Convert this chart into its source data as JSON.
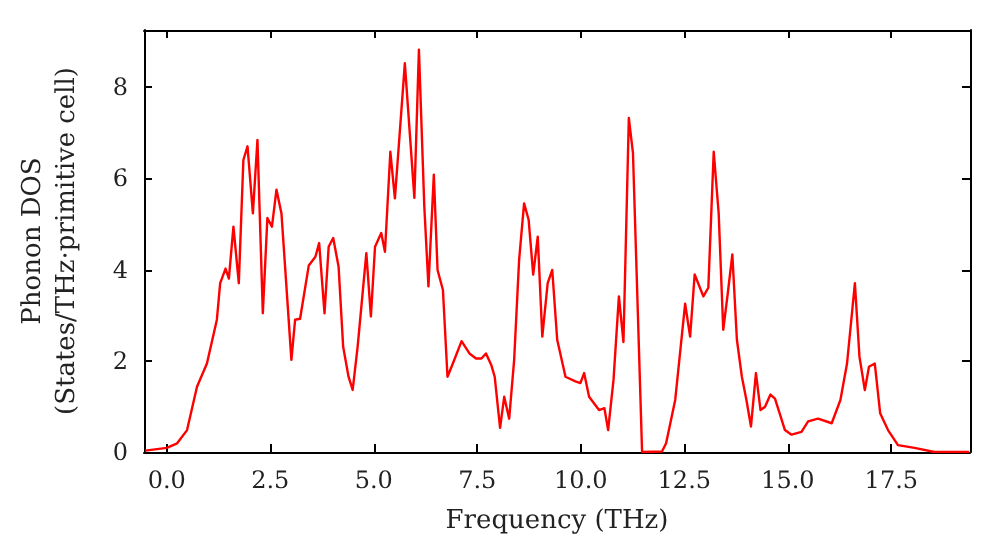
{
  "chart_data": {
    "type": "line",
    "xlabel": "Frequency (THz)",
    "ylabel": "Phonon DOS\n(States/THz·primitive cell)",
    "x": [
      -0.52,
      0,
      0.25,
      0.49,
      0.73,
      0.97,
      1.21,
      1.29,
      1.42,
      1.5,
      1.61,
      1.74,
      1.85,
      1.95,
      2.08,
      2.19,
      2.32,
      2.43,
      2.54,
      2.65,
      2.77,
      3.01,
      3.1,
      3.22,
      3.43,
      3.59,
      3.68,
      3.81,
      3.91,
      4.02,
      4.15,
      4.26,
      4.39,
      4.49,
      4.61,
      4.82,
      4.93,
      5.03,
      5.18,
      5.27,
      5.4,
      5.51,
      5.75,
      5.98,
      6.09,
      6.22,
      6.32,
      6.45,
      6.54,
      6.67,
      6.78,
      6.91,
      7.12,
      7.31,
      7.47,
      7.6,
      7.71,
      7.84,
      7.92,
      8.05,
      8.15,
      8.27,
      8.39,
      8.51,
      8.63,
      8.74,
      8.85,
      8.96,
      9.07,
      9.2,
      9.31,
      9.43,
      9.63,
      9.87,
      9.99,
      10.08,
      10.2,
      10.44,
      10.57,
      10.66,
      10.79,
      10.92,
      11.03,
      11.16,
      11.26,
      11.48,
      11.96,
      12.06,
      12.28,
      12.52,
      12.64,
      12.75,
      12.96,
      13.08,
      13.21,
      13.33,
      13.44,
      13.55,
      13.66,
      13.77,
      13.89,
      14.0,
      14.11,
      14.23,
      14.34,
      14.45,
      14.58,
      14.69,
      14.93,
      15.09,
      15.33,
      15.49,
      15.73,
      16.06,
      16.27,
      16.43,
      16.62,
      16.73,
      16.86,
      16.96,
      17.1,
      17.23,
      17.42,
      17.66,
      18.06,
      18.54,
      19.38
    ],
    "series": [
      {
        "color": "#ff0000",
        "values": [
          0.03,
          0.09,
          0.19,
          0.48,
          1.43,
          1.94,
          2.9,
          3.7,
          4.02,
          3.8,
          4.94,
          3.7,
          6.4,
          6.7,
          5.23,
          6.84,
          3.04,
          5.13,
          4.94,
          5.75,
          5.23,
          2.02,
          2.9,
          2.92,
          4.09,
          4.28,
          4.58,
          3.04,
          4.5,
          4.69,
          4.06,
          2.31,
          1.65,
          1.36,
          2.31,
          4.36,
          2.97,
          4.5,
          4.8,
          4.39,
          6.58,
          5.56,
          8.52,
          5.57,
          8.82,
          5.38,
          3.63,
          6.08,
          3.99,
          3.55,
          1.65,
          1.94,
          2.43,
          2.16,
          2.05,
          2.05,
          2.16,
          1.9,
          1.65,
          0.53,
          1.21,
          0.73,
          2.02,
          4.21,
          5.45,
          5.09,
          3.89,
          4.72,
          2.53,
          3.7,
          3.99,
          2.46,
          1.65,
          1.55,
          1.51,
          1.73,
          1.21,
          0.92,
          0.96,
          0.48,
          1.58,
          3.41,
          2.41,
          7.32,
          6.55,
          0,
          0.01,
          0.19,
          1.14,
          3.25,
          2.53,
          3.89,
          3.41,
          3.6,
          6.58,
          5.23,
          2.68,
          3.48,
          4.33,
          2.46,
          1.65,
          1.14,
          0.56,
          1.73,
          0.92,
          0.99,
          1.26,
          1.17,
          0.48,
          0.38,
          0.44,
          0.67,
          0.73,
          0.63,
          1.14,
          1.94,
          3.7,
          2.09,
          1.36,
          1.87,
          1.94,
          0.85,
          0.48,
          0.15,
          0.09,
          0,
          0
        ]
      }
    ],
    "xlim": [
      -0.55,
      19.4
    ],
    "xticks": [
      {
        "value": 0,
        "label": "0.0"
      },
      {
        "value": 2.5,
        "label": "2.5"
      },
      {
        "value": 5,
        "label": "5.0"
      },
      {
        "value": 7.5,
        "label": "7.5"
      },
      {
        "value": 10,
        "label": "10.0"
      },
      {
        "value": 12.5,
        "label": "12.5"
      },
      {
        "value": 15,
        "label": "15.0"
      },
      {
        "value": 17.5,
        "label": "17.5"
      }
    ],
    "ylim": [
      0,
      9.25
    ],
    "yticks": [
      0,
      2,
      4,
      6,
      8
    ],
    "grid": false,
    "marker": "none",
    "line_style": "solid"
  }
}
